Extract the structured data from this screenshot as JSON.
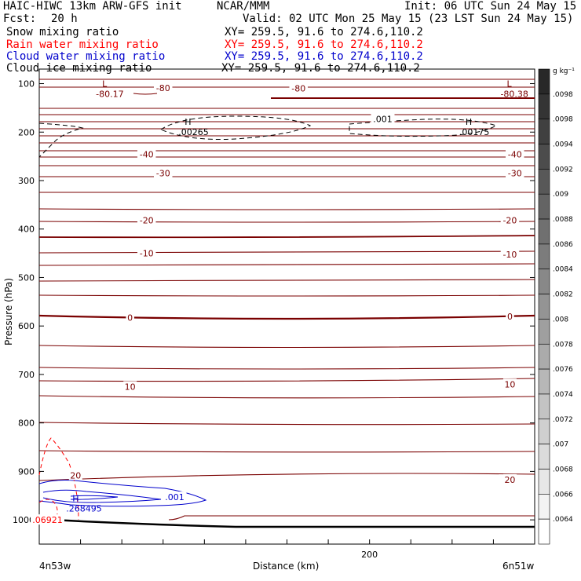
{
  "header": {
    "title_left": "HAIC-HIWC 13km ARW-GFS init",
    "org": "NCAR/MMM",
    "init": "Init: 06 UTC Sun 24 May 15",
    "fcst_label": "Fcst:",
    "fcst_value": "20 h",
    "valid": "Valid: 02 UTC Mon 25 May 15 (23 LST Sun 24 May 15)"
  },
  "fields": [
    {
      "name": "Snow mixing ratio",
      "xy": "XY= 259.5, 91.6 to 274.6,110.2",
      "color": "#000000"
    },
    {
      "name": "Rain water mixing ratio",
      "xy": "XY= 259.5, 91.6 to 274.6,110.2",
      "color": "#ff0000"
    },
    {
      "name": "Cloud water mixing ratio",
      "xy": "XY= 259.5, 91.6 to 274.6,110.2",
      "color": "#0000cc"
    },
    {
      "name": "Cloud ice mixing ratio",
      "xy": "XY= 259.5, 91.6 to 274.6,110.2",
      "color": "#000000"
    }
  ],
  "chart_data": {
    "type": "contour",
    "ylabel": "Pressure (hPa)",
    "xlabel": "Distance (km)",
    "x_left_label": "4n53w",
    "x_right_label": "6n51w",
    "xlim": [
      0,
      300
    ],
    "x_ticks": [
      200
    ],
    "ylim": [
      1050,
      70
    ],
    "y_scale": "linear",
    "y_ticks": [
      100,
      200,
      300,
      400,
      500,
      600,
      700,
      800,
      900,
      1000
    ],
    "temperature_contours": {
      "color": "#7a0000",
      "labels": [
        {
          "text": "-80",
          "x": 75,
          "p": 109
        },
        {
          "text": "-80",
          "x": 157,
          "p": 110
        },
        {
          "text": "-40",
          "x": 65,
          "p": 246
        },
        {
          "text": "-40",
          "x": 288,
          "p": 246
        },
        {
          "text": "-30",
          "x": 75,
          "p": 285
        },
        {
          "text": "-30",
          "x": 288,
          "p": 285
        },
        {
          "text": "-20",
          "x": 65,
          "p": 382
        },
        {
          "text": "-20",
          "x": 285,
          "p": 382
        },
        {
          "text": "-10",
          "x": 65,
          "p": 450
        },
        {
          "text": "-10",
          "x": 285,
          "p": 452
        },
        {
          "text": "0",
          "x": 55,
          "p": 583
        },
        {
          "text": "0",
          "x": 285,
          "p": 580
        },
        {
          "text": "10",
          "x": 55,
          "p": 725
        },
        {
          "text": "10",
          "x": 285,
          "p": 720
        },
        {
          "text": "20",
          "x": 285,
          "p": 917
        },
        {
          "text": "20",
          "x": 22,
          "p": 908
        }
      ],
      "extrema": [
        {
          "kind": "L",
          "value": "-80.17",
          "x": 40,
          "p": 110
        },
        {
          "kind": "L",
          "value": "-80.38",
          "x": 285,
          "p": 110
        }
      ]
    },
    "snow_contours": {
      "color": "#000000",
      "style": "dashed",
      "labels": [
        {
          "text": ".001",
          "x": 208,
          "p": 173
        }
      ],
      "extrema": [
        {
          "kind": "H",
          "value": ".00265",
          "x": 90,
          "p": 188
        },
        {
          "kind": "H",
          "value": ".00175",
          "x": 260,
          "p": 188
        }
      ]
    },
    "cloud_water_contours": {
      "color": "#0000cc",
      "labels": [
        {
          "text": ".001",
          "x": 82,
          "p": 953
        }
      ],
      "extrema": [
        {
          "kind": "H",
          "value": ".268495",
          "x": 22,
          "p": 965
        }
      ]
    },
    "rain_contours": {
      "color": "#ff0000",
      "style": "dashed",
      "labels": [
        {
          "text": ".06921",
          "x": 5,
          "p": 1000
        }
      ]
    },
    "colorbar": {
      "unit": "g kg⁻¹",
      "labels": [
        ".0098",
        ".0098",
        ".0094",
        ".0092",
        ".009",
        ".0088",
        ".0086",
        ".0084",
        ".0082",
        ".008",
        ".0078",
        ".0076",
        ".0074",
        ".0072",
        ".007",
        ".0068",
        ".0066",
        ".0064"
      ]
    }
  }
}
